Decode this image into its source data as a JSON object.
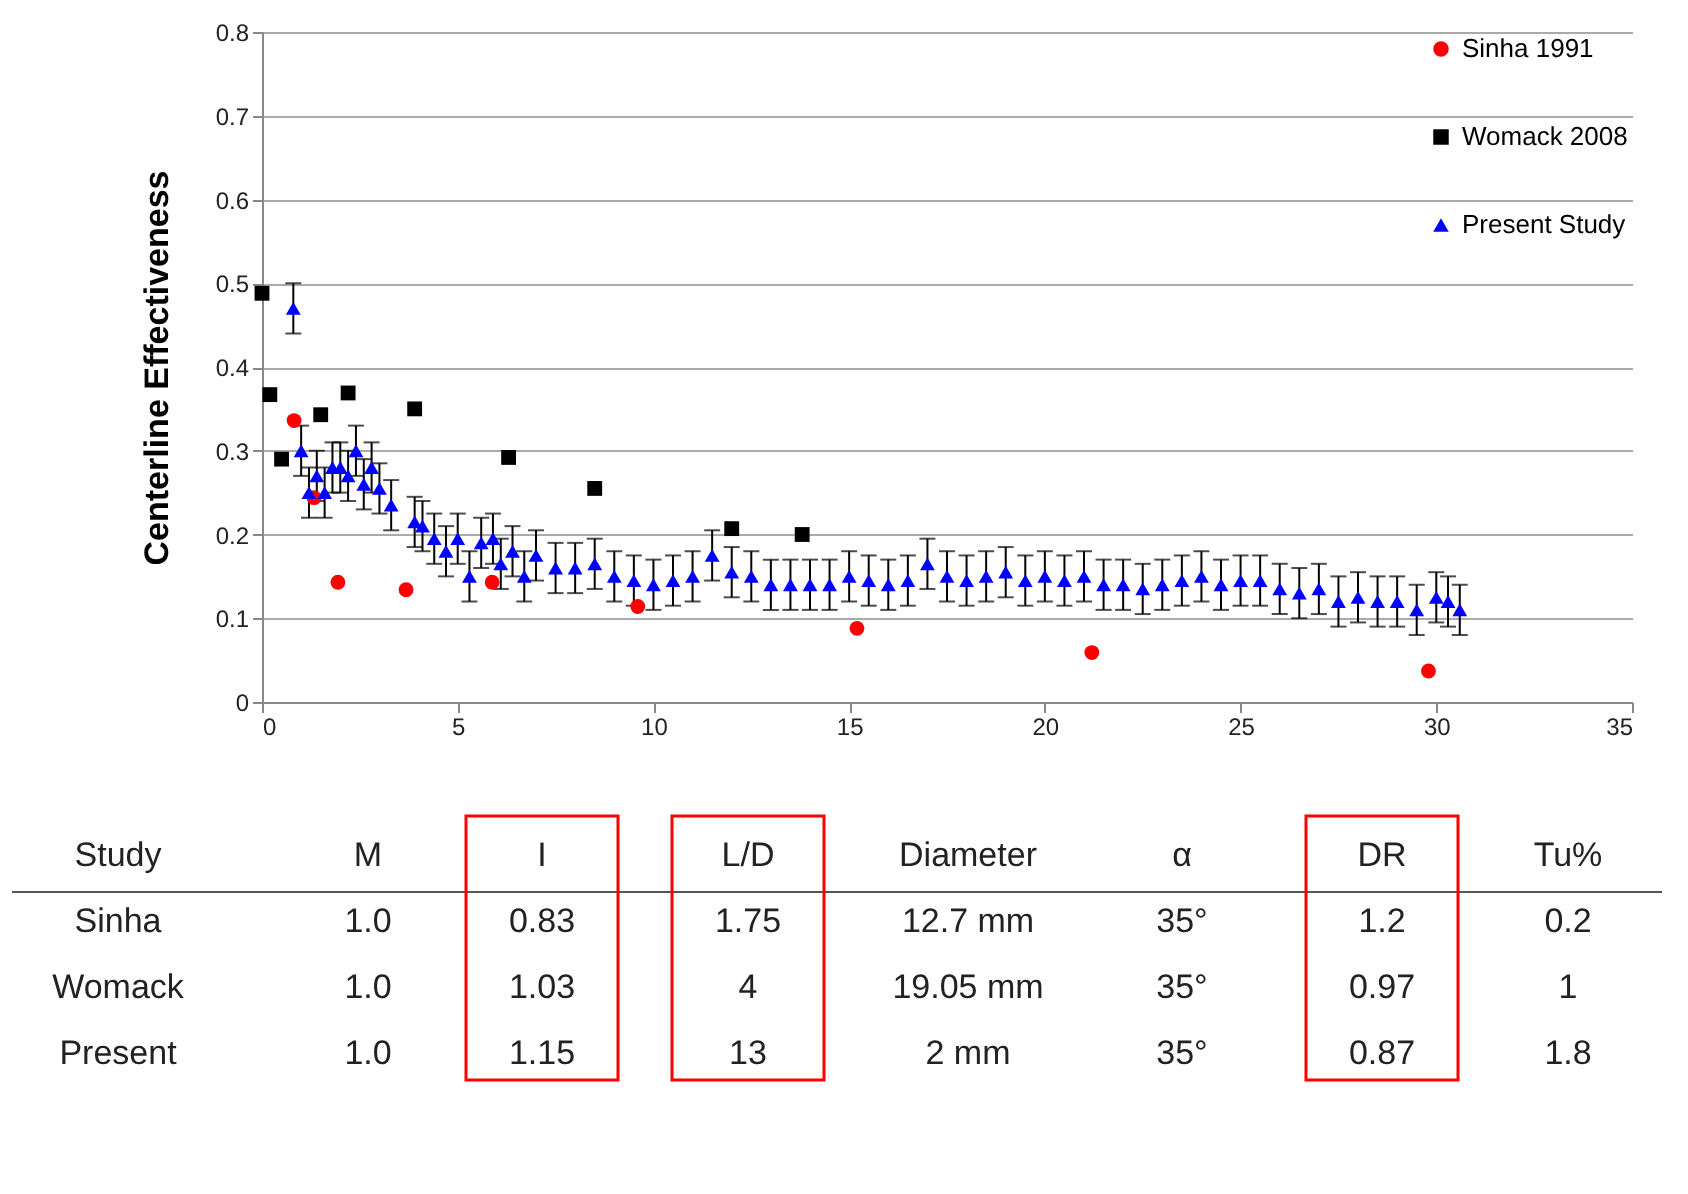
{
  "chart_data": {
    "type": "scatter",
    "ylabel": "Centerline Effectiveness",
    "xlim": [
      0,
      35
    ],
    "xticks": [
      0,
      5,
      10,
      15,
      20,
      25,
      30,
      35
    ],
    "ylim": [
      0,
      0.8
    ],
    "yticks": [
      0,
      0.1,
      0.2,
      0.3,
      0.4,
      0.5,
      0.6,
      0.7,
      0.8
    ],
    "grid": "y",
    "legend": "top right",
    "series": [
      {
        "name": "Sinha 1991",
        "color": "#ff0000",
        "marker": "circle",
        "x": [
          0.82,
          1.33,
          1.94,
          3.68,
          5.88,
          9.6,
          15.2,
          21.2,
          29.8
        ],
        "values": [
          0.336,
          0.244,
          0.143,
          0.134,
          0.143,
          0.114,
          0.088,
          0.059,
          0.037
        ]
      },
      {
        "name": "Womack 2008",
        "color": "#000000",
        "marker": "square",
        "x": [
          0,
          0.2,
          0.5,
          1.5,
          2.2,
          3.9,
          6.3,
          8.5,
          12.0,
          13.8
        ],
        "values": [
          0.488,
          0.367,
          0.29,
          0.343,
          0.369,
          0.35,
          0.292,
          0.255,
          0.207,
          0.2
        ]
      },
      {
        "name": "Present Study",
        "color": "#0000ff",
        "marker": "triangle",
        "x": [
          0.8,
          1.0,
          1.2,
          1.4,
          1.6,
          1.8,
          2.0,
          2.2,
          2.4,
          2.6,
          2.8,
          3.0,
          3.3,
          3.9,
          4.1,
          4.4,
          4.7,
          5.0,
          5.3,
          5.6,
          5.9,
          6.1,
          6.4,
          6.7,
          7.0,
          7.5,
          8.0,
          8.5,
          9.0,
          9.5,
          10.0,
          10.5,
          11.0,
          11.5,
          12.0,
          12.5,
          13.0,
          13.5,
          14.0,
          14.5,
          15.0,
          15.5,
          16.0,
          16.5,
          17.0,
          17.5,
          18.0,
          18.5,
          19.0,
          19.5,
          20.0,
          20.5,
          21.0,
          21.5,
          22.0,
          22.5,
          23.0,
          23.5,
          24.0,
          24.5,
          25.0,
          25.5,
          26.0,
          26.5,
          27.0,
          27.5,
          28.0,
          28.5,
          29.0,
          29.5,
          30.0,
          30.3,
          30.6
        ],
        "values": [
          0.47,
          0.3,
          0.25,
          0.27,
          0.25,
          0.28,
          0.28,
          0.27,
          0.3,
          0.26,
          0.28,
          0.255,
          0.235,
          0.215,
          0.21,
          0.195,
          0.18,
          0.195,
          0.15,
          0.19,
          0.195,
          0.165,
          0.18,
          0.15,
          0.175,
          0.16,
          0.16,
          0.165,
          0.15,
          0.145,
          0.14,
          0.145,
          0.15,
          0.175,
          0.155,
          0.15,
          0.14,
          0.14,
          0.14,
          0.14,
          0.15,
          0.145,
          0.14,
          0.145,
          0.165,
          0.15,
          0.145,
          0.15,
          0.155,
          0.145,
          0.15,
          0.145,
          0.15,
          0.14,
          0.14,
          0.135,
          0.14,
          0.145,
          0.15,
          0.14,
          0.145,
          0.145,
          0.135,
          0.13,
          0.135,
          0.12,
          0.125,
          0.12,
          0.12,
          0.11,
          0.125,
          0.12,
          0.11
        ],
        "errors": [
          0.03,
          0.03,
          0.03,
          0.03,
          0.03,
          0.03,
          0.03,
          0.03,
          0.03,
          0.03,
          0.03,
          0.03,
          0.03,
          0.03,
          0.03,
          0.03,
          0.03,
          0.03,
          0.03,
          0.03,
          0.03,
          0.03,
          0.03,
          0.03,
          0.03,
          0.03,
          0.03,
          0.03,
          0.03,
          0.03,
          0.03,
          0.03,
          0.03,
          0.03,
          0.03,
          0.03,
          0.03,
          0.03,
          0.03,
          0.03,
          0.03,
          0.03,
          0.03,
          0.03,
          0.03,
          0.03,
          0.03,
          0.03,
          0.03,
          0.03,
          0.03,
          0.03,
          0.03,
          0.03,
          0.03,
          0.03,
          0.03,
          0.03,
          0.03,
          0.03,
          0.03,
          0.03,
          0.03,
          0.03,
          0.03,
          0.03,
          0.03,
          0.03,
          0.03,
          0.03,
          0.03,
          0.03,
          0.03
        ]
      }
    ],
    "annotations": [
      "Study",
      "M",
      "I",
      "L/D",
      "Diameter",
      "α",
      "DR",
      "Tu%",
      "Sinha",
      "1.0",
      "0.83",
      "1.75",
      "12.7 mm",
      "35°",
      "1.2",
      "0.2",
      "Womack",
      "1.0",
      "1.03",
      "4",
      "19.05 mm",
      "35°",
      "0.97",
      "1",
      "Present",
      "1.0",
      "1.15",
      "13",
      "2 mm",
      "35°",
      "0.87",
      "1.8"
    ]
  }
}
